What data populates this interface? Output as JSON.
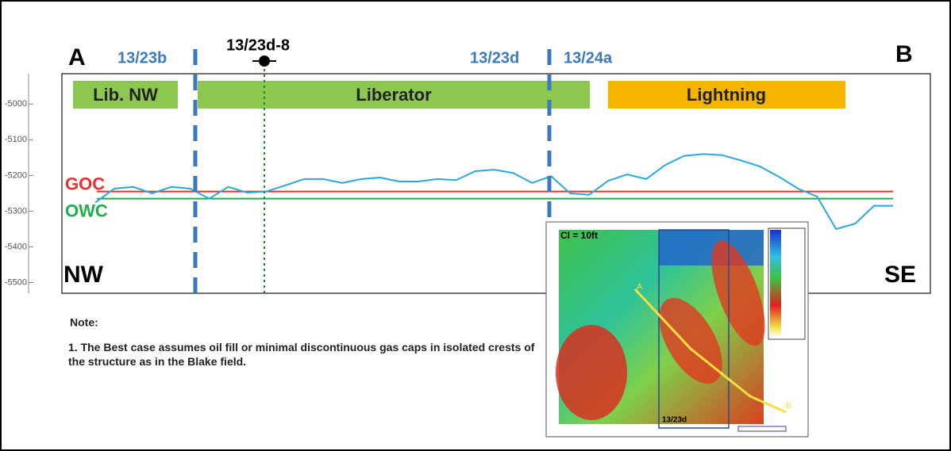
{
  "chart_data": {
    "type": "line",
    "ylim": [
      -4915,
      -5530
    ],
    "yticks": [
      -5000,
      -5100,
      -5200,
      -5300,
      -5400,
      -5500
    ],
    "series": [
      {
        "color": "#29a8e0",
        "values": [
          -5276,
          -5237,
          -5232,
          -5250,
          -5232,
          -5237,
          -5265,
          -5232,
          -5248,
          -5245,
          -5228,
          -5210,
          -5210,
          -5221,
          -5210,
          -5206,
          -5217,
          -5217,
          -5210,
          -5213,
          -5188,
          -5184,
          -5193,
          -5221,
          -5202,
          -5250,
          -5254,
          -5215,
          -5197,
          -5210,
          -5171,
          -5145,
          -5140,
          -5143,
          -5158,
          -5175,
          -5204,
          -5237,
          -5259,
          -5350,
          -5335,
          -5285,
          -5285
        ]
      }
    ],
    "reference_lines": [
      {
        "name": "GOC",
        "value": -5245,
        "color": "#e8312f"
      },
      {
        "name": "OWC",
        "value": -5265,
        "color": "#1fae4b"
      }
    ]
  },
  "ends": {
    "left": "A",
    "right": "B"
  },
  "directions": {
    "left": "NW",
    "right": "SE"
  },
  "boundaries": [
    "13/23b",
    "13/23d",
    "13/24a"
  ],
  "well": "13/23d-8",
  "fields": [
    "Lib. NW",
    "Liberator",
    "Lightning"
  ],
  "note": {
    "title": "Note:",
    "text": "1. The Best case assumes oil fill or minimal discontinuous gas caps in isolated crests of the structure as in the Blake field."
  },
  "inset": {
    "ci": "CI = 10ft",
    "block": "13/23d",
    "a": "A",
    "b": "B"
  }
}
